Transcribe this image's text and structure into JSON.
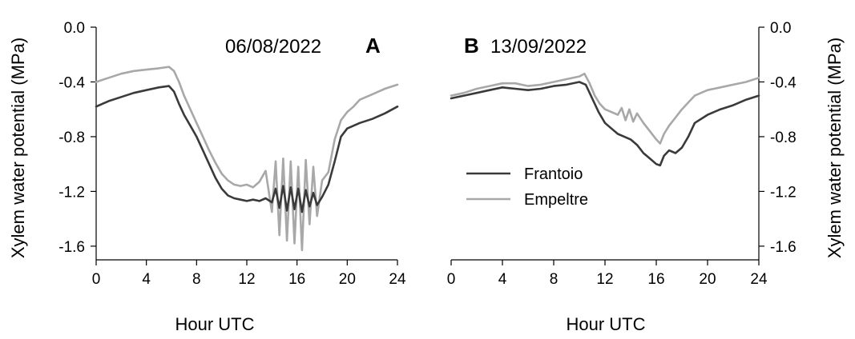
{
  "chart_data": [
    {
      "panel": "A",
      "type": "line",
      "date": "06/08/2022",
      "xlabel": "Hour UTC",
      "ylabel": "Xylem water potential (MPa)",
      "xlim": [
        0,
        24
      ],
      "ylim": [
        -1.7,
        0.0
      ],
      "xticks": [
        0,
        4,
        8,
        12,
        16,
        20,
        24
      ],
      "yticks": [
        "0.0",
        "-0.4",
        "-0.8",
        "-1.2",
        "-1.6"
      ],
      "yaxis_side": "left",
      "grid": false,
      "series": [
        {
          "name": "Frantoio",
          "color": "#3a3a3a",
          "x": [
            0,
            1,
            2,
            3,
            4,
            5,
            5.8,
            6.2,
            6.6,
            7,
            7.5,
            8,
            8.5,
            9,
            9.5,
            10,
            10.5,
            11,
            11.5,
            12,
            12.5,
            13,
            13.5,
            14,
            14.3,
            14.6,
            14.9,
            15.2,
            15.5,
            15.8,
            16.1,
            16.4,
            16.7,
            17,
            17.3,
            17.6,
            18,
            18.5,
            19,
            19.5,
            20,
            21,
            22,
            23,
            24
          ],
          "y": [
            -0.58,
            -0.54,
            -0.51,
            -0.48,
            -0.46,
            -0.44,
            -0.43,
            -0.47,
            -0.56,
            -0.64,
            -0.72,
            -0.8,
            -0.9,
            -1.0,
            -1.1,
            -1.18,
            -1.23,
            -1.25,
            -1.26,
            -1.27,
            -1.26,
            -1.27,
            -1.25,
            -1.28,
            -1.18,
            -1.32,
            -1.16,
            -1.34,
            -1.17,
            -1.33,
            -1.18,
            -1.35,
            -1.19,
            -1.31,
            -1.21,
            -1.3,
            -1.24,
            -1.15,
            -0.98,
            -0.8,
            -0.74,
            -0.7,
            -0.67,
            -0.63,
            -0.58
          ]
        },
        {
          "name": "Empeltre",
          "color": "#a8a8a8",
          "x": [
            0,
            1,
            2,
            3,
            4,
            5,
            5.8,
            6.2,
            6.6,
            7,
            7.5,
            8,
            8.5,
            9,
            9.5,
            10,
            10.5,
            11,
            11.5,
            12,
            12.5,
            13,
            13.5,
            14,
            14.3,
            14.6,
            14.9,
            15.2,
            15.5,
            15.8,
            16.1,
            16.4,
            16.7,
            17,
            17.3,
            17.6,
            18,
            18.5,
            19,
            19.5,
            20,
            20.5,
            21,
            22,
            23,
            24
          ],
          "y": [
            -0.4,
            -0.37,
            -0.34,
            -0.32,
            -0.31,
            -0.3,
            -0.29,
            -0.32,
            -0.4,
            -0.5,
            -0.6,
            -0.7,
            -0.8,
            -0.9,
            -0.99,
            -1.07,
            -1.12,
            -1.15,
            -1.16,
            -1.15,
            -1.17,
            -1.13,
            -1.05,
            -1.35,
            -0.98,
            -1.52,
            -0.96,
            -1.56,
            -0.98,
            -1.58,
            -1.02,
            -1.63,
            -0.97,
            -1.44,
            -1.02,
            -1.38,
            -1.12,
            -1.06,
            -0.82,
            -0.68,
            -0.62,
            -0.58,
            -0.53,
            -0.49,
            -0.45,
            -0.42
          ]
        }
      ]
    },
    {
      "panel": "B",
      "type": "line",
      "date": "13/09/2022",
      "xlabel": "Hour UTC",
      "ylabel": "Xylem water potential (MPa)",
      "xlim": [
        0,
        24
      ],
      "ylim": [
        -1.7,
        0.0
      ],
      "xticks": [
        0,
        4,
        8,
        12,
        16,
        20,
        24
      ],
      "yticks": [
        "0.0",
        "-0.4",
        "-0.8",
        "-1.2",
        "-1.6"
      ],
      "yaxis_side": "right",
      "grid": false,
      "legend": {
        "placement": "center-left",
        "entries": [
          "Frantoio",
          "Empeltre"
        ]
      },
      "series": [
        {
          "name": "Frantoio",
          "color": "#3a3a3a",
          "x": [
            0,
            1,
            2,
            3,
            4,
            5,
            6,
            7,
            8,
            9,
            10,
            10.5,
            11,
            11.5,
            12,
            12.5,
            13,
            13.5,
            14,
            14.5,
            15,
            15.5,
            16,
            16.3,
            16.6,
            17,
            17.5,
            18,
            18.5,
            19,
            20,
            21,
            22,
            23,
            24
          ],
          "y": [
            -0.52,
            -0.5,
            -0.48,
            -0.46,
            -0.44,
            -0.45,
            -0.46,
            -0.45,
            -0.43,
            -0.42,
            -0.4,
            -0.42,
            -0.52,
            -0.62,
            -0.7,
            -0.74,
            -0.78,
            -0.8,
            -0.82,
            -0.86,
            -0.92,
            -0.96,
            -1.0,
            -1.01,
            -0.94,
            -0.9,
            -0.92,
            -0.88,
            -0.8,
            -0.7,
            -0.64,
            -0.6,
            -0.57,
            -0.53,
            -0.5
          ]
        },
        {
          "name": "Empeltre",
          "color": "#a8a8a8",
          "x": [
            0,
            1,
            2,
            3,
            4,
            5,
            6,
            7,
            8,
            9,
            10,
            10.4,
            10.8,
            11.2,
            11.6,
            12,
            12.5,
            13,
            13.3,
            13.6,
            13.9,
            14.2,
            14.5,
            15,
            15.5,
            16,
            16.3,
            16.6,
            17,
            17.5,
            18,
            18.5,
            19,
            20,
            21,
            22,
            23,
            24
          ],
          "y": [
            -0.5,
            -0.48,
            -0.45,
            -0.43,
            -0.41,
            -0.41,
            -0.43,
            -0.42,
            -0.4,
            -0.38,
            -0.36,
            -0.34,
            -0.41,
            -0.5,
            -0.56,
            -0.6,
            -0.62,
            -0.64,
            -0.59,
            -0.68,
            -0.6,
            -0.69,
            -0.63,
            -0.7,
            -0.76,
            -0.82,
            -0.85,
            -0.78,
            -0.72,
            -0.66,
            -0.6,
            -0.55,
            -0.5,
            -0.46,
            -0.44,
            -0.42,
            -0.4,
            -0.37
          ]
        }
      ]
    }
  ]
}
